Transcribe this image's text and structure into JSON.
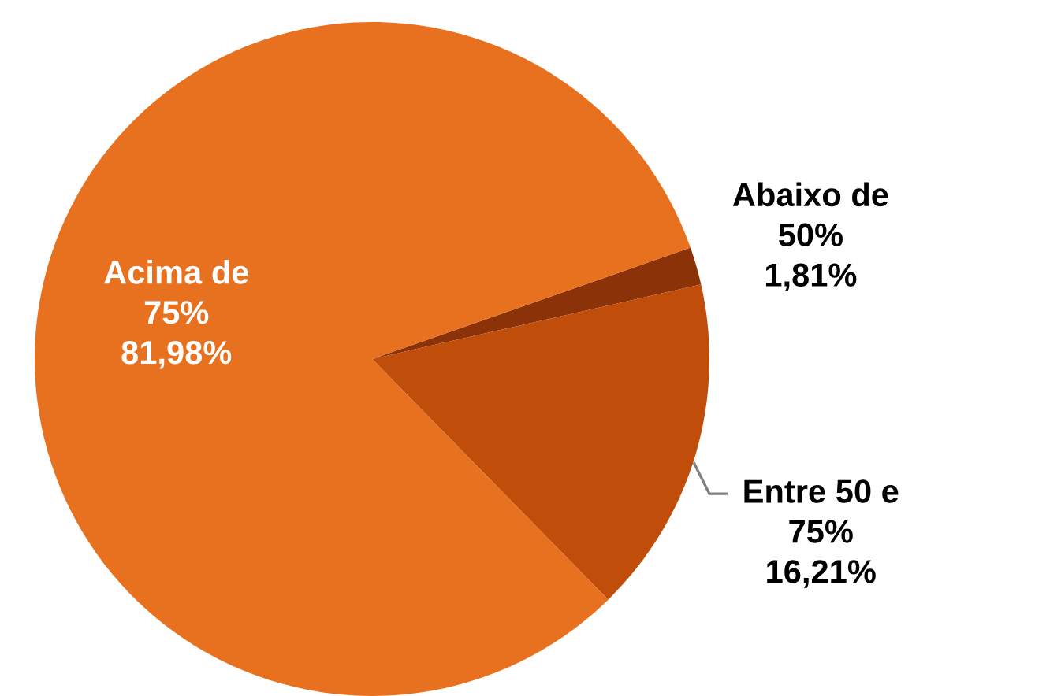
{
  "chart_data": {
    "type": "pie",
    "categories": [
      "Abaixo de 50%",
      "Entre 50 e 75%",
      "Acima de 75%"
    ],
    "values": [
      1.81,
      16.21,
      81.98
    ],
    "value_labels": [
      "1,81%",
      "16,21%",
      "81,98%"
    ],
    "colors": [
      "#8b3208",
      "#c04e0a",
      "#e8711f"
    ],
    "legend": false
  }
}
